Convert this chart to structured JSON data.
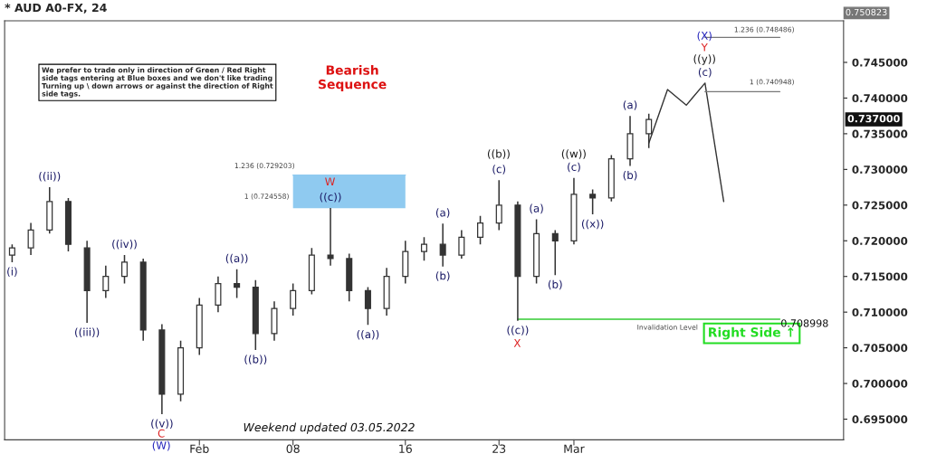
{
  "chart_data": {
    "type": "candlestick",
    "title": "* AUD A0-FX, 24",
    "categories": [
      null,
      null,
      null,
      null,
      null,
      null,
      null,
      null,
      null,
      null,
      "Feb",
      null,
      null,
      null,
      null,
      "08",
      null,
      null,
      null,
      null,
      null,
      "16",
      null,
      null,
      null,
      null,
      "23",
      null,
      null,
      null,
      "Mar",
      null,
      null,
      null,
      null,
      null,
      null,
      null,
      null,
      null,
      null,
      null,
      null,
      null,
      null
    ],
    "ohlc": [
      [
        0.718,
        0.7195,
        0.717,
        0.719
      ],
      [
        0.719,
        0.7225,
        0.718,
        0.7215
      ],
      [
        0.7215,
        0.7275,
        0.721,
        0.7255
      ],
      [
        0.7255,
        0.726,
        0.7185,
        0.7195
      ],
      [
        0.719,
        0.72,
        0.7085,
        0.713
      ],
      [
        0.713,
        0.7165,
        0.712,
        0.715
      ],
      [
        0.715,
        0.718,
        0.714,
        0.717
      ],
      [
        0.717,
        0.7175,
        0.706,
        0.7075
      ],
      [
        0.7075,
        0.7083,
        0.6957,
        0.6985
      ],
      [
        0.6985,
        0.706,
        0.6975,
        0.705
      ],
      [
        0.705,
        0.712,
        0.704,
        0.711
      ],
      [
        0.711,
        0.715,
        0.71,
        0.714
      ],
      [
        0.714,
        0.716,
        0.712,
        0.7135
      ],
      [
        0.7135,
        0.7145,
        0.7047,
        0.707
      ],
      [
        0.707,
        0.7115,
        0.706,
        0.7105
      ],
      [
        0.7105,
        0.714,
        0.7095,
        0.713
      ],
      [
        0.713,
        0.719,
        0.7125,
        0.718
      ],
      [
        0.718,
        0.7246,
        0.7165,
        0.7175
      ],
      [
        0.7175,
        0.7182,
        0.7115,
        0.713
      ],
      [
        0.713,
        0.7135,
        0.7082,
        0.7105
      ],
      [
        0.7105,
        0.7162,
        0.7095,
        0.715
      ],
      [
        0.715,
        0.72,
        0.714,
        0.7185
      ],
      [
        0.7185,
        0.7205,
        0.7172,
        0.7195
      ],
      [
        0.7195,
        0.7224,
        0.7164,
        0.718
      ],
      [
        0.718,
        0.7215,
        0.7175,
        0.7205
      ],
      [
        0.7205,
        0.7235,
        0.7195,
        0.7225
      ],
      [
        0.7225,
        0.7285,
        0.7215,
        0.725
      ],
      [
        0.725,
        0.7255,
        0.7088,
        0.715
      ],
      [
        0.715,
        0.723,
        0.714,
        0.721
      ],
      [
        0.721,
        0.7215,
        0.7152,
        0.72
      ],
      [
        0.72,
        0.7288,
        0.7195,
        0.7265
      ],
      [
        0.7265,
        0.7272,
        0.7237,
        0.726
      ],
      [
        0.726,
        0.732,
        0.7255,
        0.7315
      ],
      [
        0.7315,
        0.7375,
        0.7305,
        0.735
      ],
      [
        0.735,
        0.7378,
        0.733,
        0.737
      ],
      null,
      null,
      null,
      null,
      null,
      null,
      null,
      null,
      null,
      null
    ],
    "color": "#333333",
    "series": [
      {
        "type": "line",
        "values": [
          null,
          null,
          null,
          null,
          null,
          null,
          null,
          null,
          null,
          null,
          null,
          null,
          null,
          null,
          null,
          null,
          null,
          null,
          null,
          null,
          null,
          null,
          null,
          null,
          null,
          null,
          null,
          null,
          null,
          null,
          null,
          null,
          null,
          null,
          0.7337,
          0.7412,
          0.739,
          0.7421,
          0.7255,
          null,
          null,
          null,
          null,
          null,
          null
        ],
        "color": "#333333"
      },
      {
        "type": "line",
        "values": [
          null,
          null,
          null,
          null,
          null,
          null,
          null,
          null,
          null,
          null,
          null,
          null,
          null,
          null,
          null,
          null,
          null,
          null,
          null,
          null,
          null,
          null,
          null,
          null,
          null,
          null,
          null,
          null,
          null,
          null,
          null,
          null,
          null,
          null,
          null,
          null,
          null,
          0.7485,
          0.7485,
          0.7485,
          0.7485,
          0.7485,
          null,
          null,
          null
        ],
        "color": "#777777"
      },
      {
        "type": "line",
        "values": [
          null,
          null,
          null,
          null,
          null,
          null,
          null,
          null,
          null,
          null,
          null,
          null,
          null,
          null,
          null,
          null,
          null,
          null,
          null,
          null,
          null,
          null,
          null,
          null,
          null,
          null,
          null,
          null,
          null,
          null,
          null,
          null,
          null,
          null,
          null,
          null,
          null,
          0.7409,
          0.7409,
          0.7409,
          0.7409,
          0.7409,
          null,
          null,
          null
        ],
        "color": "#777777"
      },
      {
        "type": "line",
        "values": [
          null,
          null,
          null,
          null,
          null,
          null,
          null,
          null,
          null,
          null,
          null,
          null,
          null,
          null,
          null,
          null,
          null,
          null,
          null,
          null,
          null,
          null,
          null,
          null,
          null,
          null,
          null,
          0.709,
          0.709,
          0.709,
          0.709,
          0.709,
          0.709,
          0.709,
          0.709,
          0.709,
          0.709,
          0.709,
          0.709,
          0.709,
          0.709,
          0.709,
          null,
          null,
          null
        ],
        "color": "#33cc33"
      },
      {
        "type": "line",
        "values": [
          null,
          null,
          null,
          null,
          null,
          null,
          null,
          null,
          null,
          null,
          null,
          null,
          null,
          null,
          null,
          0.7292,
          0.7292,
          0.7292,
          0.7292,
          0.7292,
          0.7292,
          0.7292,
          null,
          null,
          null,
          null,
          null,
          null,
          null,
          null,
          null,
          null,
          null,
          null,
          null,
          null,
          null,
          null,
          null,
          null,
          null,
          null,
          null,
          null,
          null
        ],
        "lower": [
          null,
          null,
          null,
          null,
          null,
          null,
          null,
          null,
          null,
          null,
          null,
          null,
          null,
          null,
          null,
          0.72456,
          0.72456,
          0.72456,
          0.72456,
          0.72456,
          0.72456,
          0.72456,
          null,
          null,
          null,
          null,
          null,
          null,
          null,
          null,
          null,
          null,
          null,
          null,
          null,
          null,
          null,
          null,
          null,
          null,
          null,
          null,
          null,
          null,
          null
        ],
        "upper": [
          null,
          null,
          null,
          null,
          null,
          null,
          null,
          null,
          null,
          null,
          null,
          null,
          null,
          null,
          null,
          0.7292,
          0.7292,
          0.7292,
          0.7292,
          0.7292,
          0.7292,
          0.7292,
          null,
          null,
          null,
          null,
          null,
          null,
          null,
          null,
          null,
          null,
          null,
          null,
          null,
          null,
          null,
          null,
          null,
          null,
          null,
          null,
          null,
          null,
          null
        ],
        "color": "#8fcaf0"
      }
    ],
    "ylim": [
      0.6921,
      0.750823
    ],
    "yticks": [
      {
        "value": 0.695,
        "label": "0.695000"
      },
      {
        "value": 0.7,
        "label": "0.700000"
      },
      {
        "value": 0.705,
        "label": "0.705000"
      },
      {
        "value": 0.71,
        "label": "0.710000"
      },
      {
        "value": 0.715,
        "label": "0.715000"
      },
      {
        "value": 0.72,
        "label": "0.720000"
      },
      {
        "value": 0.725,
        "label": "0.725000"
      },
      {
        "value": 0.73,
        "label": "0.730000"
      },
      {
        "value": 0.735,
        "label": "0.735000"
      },
      {
        "value": 0.74,
        "label": "0.740000"
      },
      {
        "value": 0.745,
        "label": "0.745000"
      }
    ],
    "grid": false,
    "annotations": [
      "We prefer to trade only in direction of Green / Red Right side tags entering at Blue boxes and we don't like trading Turning up \\ down arrows or against the direction of Right side tags.",
      "Bearish Sequence",
      "Right Side ↑",
      "Weekend updated 03.05.2022",
      "0.750823",
      "0.737000",
      "1.236 (0.748486)",
      "1 (0.740948)",
      "1.236 (0.729203)",
      "1 (0.724558)",
      "Invalidation Level",
      "0.708998",
      "C",
      "(W)",
      "W",
      "((b))",
      "X",
      "((w))",
      "((y))",
      "Y",
      "(X)",
      {
        "text": "(i)",
        "y": 0.717
      },
      {
        "text": "((ii))",
        "y": 0.7275
      },
      {
        "text": "((iii))",
        "y": 0.7085
      },
      {
        "text": "((iv))",
        "y": 0.718
      },
      {
        "text": "((v))",
        "y": 0.6957
      },
      {
        "text": "((a))",
        "y": 0.716
      },
      {
        "text": "((b))",
        "y": 0.7047
      },
      {
        "text": "((c))",
        "y": 0.7246
      },
      {
        "text": "((a))",
        "y": 0.7082
      },
      {
        "text": "(a)",
        "y": 0.7224
      },
      {
        "text": "(b)",
        "y": 0.7164
      },
      {
        "text": "(c)",
        "y": 0.7285
      },
      {
        "text": "((c))",
        "y": 0.7088
      },
      {
        "text": "(a)",
        "y": 0.723
      },
      {
        "text": "(b)",
        "y": 0.7152
      },
      {
        "text": "(c)",
        "y": 0.7288
      },
      {
        "text": "((x))",
        "y": 0.7237
      },
      {
        "text": "(a)",
        "y": 0.7375
      },
      {
        "text": "(b)",
        "y": 0.7305
      },
      {
        "text": "(c)",
        "y": 0.7421
      }
    ]
  }
}
